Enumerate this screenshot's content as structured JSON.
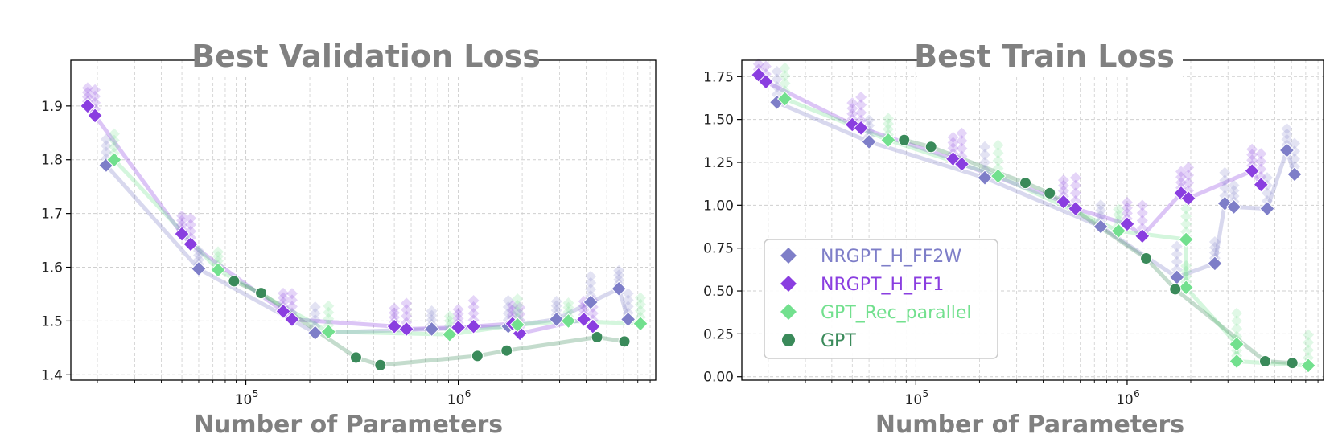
{
  "chart_data": [
    {
      "type": "scatter",
      "title": "Best Validation Loss",
      "xlabel": "Number of Parameters",
      "ylabel": "",
      "xscale": "log",
      "xlim": [
        15000,
        8500000
      ],
      "ylim": [
        1.39,
        1.985
      ],
      "yticks": [
        1.4,
        1.5,
        1.6,
        1.7,
        1.8,
        1.9
      ],
      "ytick_labels": [
        "1.4",
        "1.5",
        "1.6",
        "1.7",
        "1.8",
        "1.9"
      ],
      "xticks": [
        {
          "value": 100000,
          "base": "10",
          "exp": "5"
        },
        {
          "value": 1000000,
          "base": "10",
          "exp": "6"
        }
      ],
      "grid": true,
      "series": [
        {
          "name": "NRGPT_H_FF2W",
          "color": "#7e7ec8",
          "marker": "diamond",
          "x": [
            22000,
            60000,
            212000,
            750000,
            1720000,
            2900000,
            4200000,
            5700000,
            6300000
          ],
          "y": [
            1.79,
            1.597,
            1.478,
            1.485,
            1.49,
            1.503,
            1.535,
            1.56,
            1.503
          ]
        },
        {
          "name": "NRGPT_H_FF1",
          "color": "#8a3ee0",
          "marker": "diamond",
          "x": [
            18000,
            19500,
            50000,
            55000,
            150000,
            165000,
            500000,
            570000,
            1000000,
            1180000,
            1800000,
            1950000,
            3900000,
            4300000
          ],
          "y": [
            1.9,
            1.882,
            1.662,
            1.643,
            1.518,
            1.503,
            1.49,
            1.485,
            1.488,
            1.49,
            1.495,
            1.477,
            1.503,
            1.49
          ]
        },
        {
          "name": "GPT_Rec_parallel",
          "color": "#72e08e",
          "marker": "diamond",
          "x": [
            24000,
            74000,
            245000,
            910000,
            1900000,
            3300000,
            7200000
          ],
          "y": [
            1.8,
            1.595,
            1.48,
            1.475,
            1.493,
            1.5,
            1.495
          ]
        },
        {
          "name": "GPT",
          "color": "#3a8a5a",
          "marker": "circle",
          "x": [
            88000,
            118000,
            330000,
            430000,
            1230000,
            1690000,
            4500000,
            6050000
          ],
          "y": [
            1.574,
            1.552,
            1.432,
            1.418,
            1.435,
            1.445,
            1.47,
            1.462
          ]
        }
      ]
    },
    {
      "type": "scatter",
      "title": "Best Train Loss",
      "xlabel": "Number of Parameters",
      "ylabel": "",
      "xscale": "log",
      "xlim": [
        15000,
        8500000
      ],
      "ylim": [
        -0.02,
        1.845
      ],
      "yticks": [
        0.0,
        0.25,
        0.5,
        0.75,
        1.0,
        1.25,
        1.5,
        1.75
      ],
      "ytick_labels": [
        "0.00",
        "0.25",
        "0.50",
        "0.75",
        "1.00",
        "1.25",
        "1.50",
        "1.75"
      ],
      "xticks": [
        {
          "value": 100000,
          "base": "10",
          "exp": "5"
        },
        {
          "value": 1000000,
          "base": "10",
          "exp": "6"
        }
      ],
      "grid": true,
      "legend_position": "lower-left",
      "series": [
        {
          "name": "NRGPT_H_FF2W",
          "color": "#7e7ec8",
          "marker": "diamond",
          "x": [
            22000,
            60000,
            212000,
            750000,
            1720000,
            2600000,
            2900000,
            3200000,
            4600000,
            5700000,
            6200000
          ],
          "y": [
            1.6,
            1.37,
            1.16,
            0.875,
            0.58,
            0.66,
            1.01,
            0.99,
            0.98,
            1.32,
            1.18
          ]
        },
        {
          "name": "NRGPT_H_FF1",
          "color": "#8a3ee0",
          "marker": "diamond",
          "x": [
            18000,
            19500,
            50000,
            55000,
            150000,
            165000,
            500000,
            570000,
            1000000,
            1180000,
            1800000,
            1950000,
            3900000,
            4300000
          ],
          "y": [
            1.76,
            1.72,
            1.47,
            1.45,
            1.27,
            1.24,
            1.02,
            0.98,
            0.89,
            0.82,
            1.07,
            1.04,
            1.2,
            1.12
          ]
        },
        {
          "name": "GPT_Rec_parallel",
          "color": "#72e08e",
          "marker": "diamond",
          "x": [
            24000,
            74000,
            245000,
            910000,
            1900000,
            1900000,
            3300000,
            3300000,
            7200000
          ],
          "y": [
            1.62,
            1.38,
            1.17,
            0.85,
            0.8,
            0.52,
            0.19,
            0.09,
            0.065
          ]
        },
        {
          "name": "GPT",
          "color": "#3a8a5a",
          "marker": "circle",
          "x": [
            88000,
            118000,
            330000,
            430000,
            1230000,
            1690000,
            4500000,
            6050000
          ],
          "y": [
            1.38,
            1.34,
            1.13,
            1.07,
            0.69,
            0.51,
            0.09,
            0.08
          ]
        }
      ]
    }
  ]
}
